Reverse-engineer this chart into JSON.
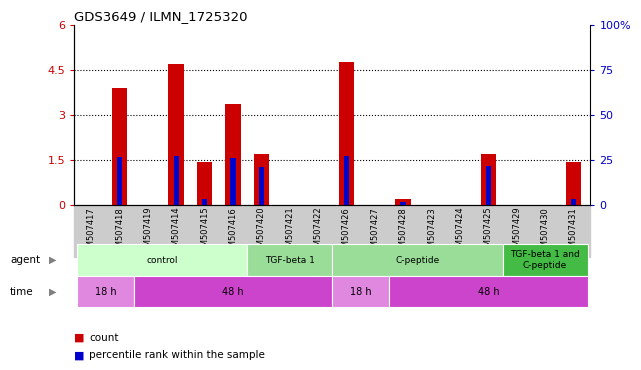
{
  "title": "GDS3649 / ILMN_1725320",
  "samples": [
    "GSM507417",
    "GSM507418",
    "GSM507419",
    "GSM507414",
    "GSM507415",
    "GSM507416",
    "GSM507420",
    "GSM507421",
    "GSM507422",
    "GSM507426",
    "GSM507427",
    "GSM507428",
    "GSM507423",
    "GSM507424",
    "GSM507425",
    "GSM507429",
    "GSM507430",
    "GSM507431"
  ],
  "counts": [
    0,
    3.9,
    0,
    4.7,
    1.45,
    3.35,
    1.7,
    0,
    0,
    4.75,
    0,
    0.2,
    0,
    0,
    1.7,
    0,
    0,
    1.45
  ],
  "percentile": [
    0,
    27,
    0,
    27.5,
    3.7,
    26,
    21,
    0,
    0,
    27.5,
    0,
    1.7,
    0,
    0,
    22,
    0,
    0,
    3.7
  ],
  "ylim_left": [
    0,
    6
  ],
  "ylim_right": [
    0,
    100
  ],
  "yticks_left": [
    0,
    1.5,
    3.0,
    4.5,
    6
  ],
  "yticks_left_labels": [
    "0",
    "1.5",
    "3",
    "4.5",
    "6"
  ],
  "yticks_right": [
    0,
    25,
    50,
    75,
    100
  ],
  "yticks_right_labels": [
    "0",
    "25",
    "50",
    "75",
    "100%"
  ],
  "bar_color": "#cc0000",
  "percentile_color": "#0000cc",
  "agent_groups": [
    {
      "label": "control",
      "start": 0,
      "end": 5,
      "color": "#ccffcc"
    },
    {
      "label": "TGF-beta 1",
      "start": 6,
      "end": 8,
      "color": "#99dd99"
    },
    {
      "label": "C-peptide",
      "start": 9,
      "end": 14,
      "color": "#99dd99"
    },
    {
      "label": "TGF-beta 1 and\nC-peptide",
      "start": 15,
      "end": 17,
      "color": "#44bb44"
    }
  ],
  "time_groups": [
    {
      "label": "18 h",
      "start": 0,
      "end": 1,
      "color": "#e088e0"
    },
    {
      "label": "48 h",
      "start": 2,
      "end": 8,
      "color": "#cc44cc"
    },
    {
      "label": "18 h",
      "start": 9,
      "end": 10,
      "color": "#e088e0"
    },
    {
      "label": "48 h",
      "start": 11,
      "end": 17,
      "color": "#cc44cc"
    }
  ],
  "tick_bg_color": "#cccccc",
  "plot_bg": "#ffffff"
}
